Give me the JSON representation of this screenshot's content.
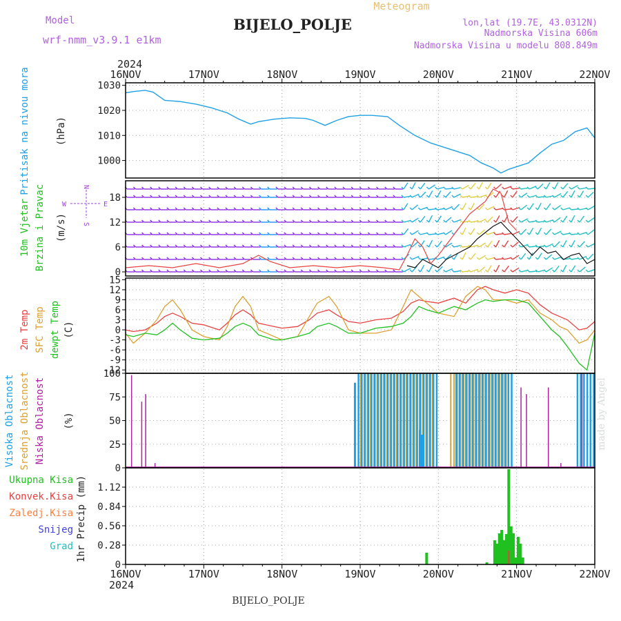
{
  "header": {
    "model_label": "Model",
    "model_name": "wrf-nmm_v3.9.1 e1km",
    "title": "BIJELO_POLJE",
    "meteogram": "Meteogram",
    "lonlat": "lon,lat (19.7E, 43.0312N)",
    "elevation": "Nadmorska Visina 606m",
    "model_elevation": "Nadmorska Visina u modelu 808.849m",
    "bottom_name": "BIJELO_POLJE",
    "watermark": "made by Angel",
    "year_top": "2024",
    "year_bottom": "2024"
  },
  "colors": {
    "pressure": "#1ea0e6",
    "temp2m": "#e84040",
    "sfc": "#dca030",
    "dewpt": "#20c020",
    "purple": "#a040e0",
    "high": "#1ea0e6",
    "mid": "#dca030",
    "low": "#b020a0",
    "precip_total": "#20c020",
    "precip_conv": "#e84040"
  },
  "chart_data": [
    {
      "type": "line",
      "panel": "pressure",
      "ylabel_lines": [
        "Pritisak na nivou mora",
        "(hPa)"
      ],
      "x_ticks": [
        "16NOV",
        "17NOV",
        "18NOV",
        "19NOV",
        "20NOV",
        "21NOV",
        "22NOV"
      ],
      "xlim": [
        0,
        6
      ],
      "ylim": [
        993,
        1031
      ],
      "y_ticks": [
        1000,
        1010,
        1020,
        1030
      ],
      "series": [
        {
          "x": [
            0,
            0.1,
            0.25,
            0.35,
            0.5,
            0.7,
            0.9,
            1.1,
            1.3,
            1.45,
            1.6,
            1.7,
            1.9,
            2.1,
            2.3,
            2.4,
            2.55,
            2.7,
            2.85,
            3.0,
            3.15,
            3.35,
            3.5,
            3.7,
            3.9,
            4.0,
            4.2,
            4.4,
            4.55,
            4.7,
            4.8,
            4.9,
            5.05,
            5.15,
            5.3,
            5.45,
            5.6,
            5.75,
            5.9,
            6.0
          ],
          "y": [
            1027,
            1027.5,
            1028,
            1027.3,
            1024,
            1023.5,
            1022.5,
            1021,
            1019,
            1016.5,
            1014.5,
            1015.5,
            1016.5,
            1017,
            1016.8,
            1016,
            1014,
            1016,
            1017.5,
            1018,
            1018,
            1017.5,
            1014,
            1010,
            1007,
            1006,
            1004,
            1002,
            999,
            997,
            995,
            996.5,
            998,
            999,
            1003,
            1006.5,
            1008,
            1011.5,
            1013,
            1009
          ]
        }
      ]
    },
    {
      "type": "line",
      "panel": "wind",
      "ylabel_lines": [
        "10m Vjetar",
        "Brzina i Pravac",
        "(m/s)"
      ],
      "compass": {
        "n": "N",
        "w": "W",
        "e": "E",
        "s": "S"
      },
      "ylim": [
        -1,
        22
      ],
      "y_ticks": [
        0,
        6,
        12,
        18
      ],
      "series": [
        {
          "name": "speed",
          "x": [
            3.6,
            3.7,
            3.8,
            3.9,
            4.0,
            4.1,
            4.2,
            4.3,
            4.4,
            4.5,
            4.6,
            4.7,
            4.8,
            4.9,
            5.0,
            5.1,
            5.2,
            5.3,
            5.4,
            5.5,
            5.6,
            5.7,
            5.8,
            5.9,
            6.0
          ],
          "y": [
            1.5,
            1,
            3,
            2,
            1,
            3,
            4,
            5,
            6,
            8,
            9.5,
            11,
            12,
            10,
            8,
            6,
            4,
            6,
            4.5,
            5,
            3,
            4,
            4.5,
            2,
            3
          ]
        },
        {
          "name": "gust",
          "x": [
            0,
            0.3,
            0.6,
            0.9,
            1.2,
            1.5,
            1.7,
            1.85,
            2.1,
            2.4,
            2.7,
            3.0,
            3.3,
            3.5,
            3.6,
            3.7,
            3.8,
            3.9,
            4.0,
            4.2,
            4.4,
            4.6,
            4.7,
            4.8,
            4.9,
            5.0
          ],
          "y": [
            1,
            1.5,
            1,
            2,
            1,
            2,
            4,
            2.5,
            1,
            1.5,
            1,
            1.5,
            1,
            0.5,
            4,
            8,
            6,
            2,
            4,
            9,
            14,
            17,
            20,
            19,
            12,
            10
          ]
        }
      ]
    },
    {
      "type": "line",
      "panel": "temperature",
      "ylabel_lines": [
        "2m Temp",
        "SFC Temp",
        "dewpt Temp",
        "(C)"
      ],
      "ylim": [
        -13,
        15.5
      ],
      "y_ticks": [
        15,
        12,
        9,
        6,
        3,
        0,
        -3,
        -6,
        -9,
        -12
      ],
      "x": [
        0,
        0.1,
        0.25,
        0.4,
        0.5,
        0.6,
        0.7,
        0.85,
        1.0,
        1.2,
        1.3,
        1.4,
        1.5,
        1.6,
        1.7,
        1.9,
        2.0,
        2.2,
        2.35,
        2.45,
        2.6,
        2.7,
        2.85,
        3.0,
        3.2,
        3.4,
        3.55,
        3.65,
        3.75,
        3.85,
        4.0,
        4.2,
        4.35,
        4.5,
        4.6,
        4.7,
        4.85,
        5.0,
        5.15,
        5.3,
        5.45,
        5.55,
        5.65,
        5.8,
        5.9,
        6.0
      ],
      "series": [
        {
          "name": "2m Temp",
          "y": [
            0,
            -0.5,
            0,
            2,
            4,
            5,
            4,
            2,
            1.5,
            0,
            2,
            4.5,
            6,
            4.5,
            2,
            1,
            0.5,
            1,
            3,
            5,
            6,
            4.5,
            2.5,
            2,
            3,
            3.5,
            5.5,
            8,
            9,
            8.5,
            8,
            9.5,
            8,
            12,
            13,
            12,
            11,
            12,
            11,
            7.5,
            5,
            4,
            3,
            0,
            0.5,
            2.5
          ]
        },
        {
          "name": "SFC Temp",
          "y": [
            -1,
            -4,
            -1,
            3,
            7,
            9,
            6,
            0,
            -2,
            -3,
            1,
            7,
            10,
            7,
            0,
            -2,
            -3,
            -2,
            4,
            8,
            10,
            7,
            0,
            -1,
            -1,
            0,
            7,
            12,
            10,
            8,
            5,
            4,
            10,
            13,
            12,
            9,
            9,
            8,
            9,
            5,
            3,
            1,
            0,
            -4,
            -3,
            0
          ]
        },
        {
          "name": "dewpt Temp",
          "y": [
            -1.5,
            -2,
            -1,
            -1.5,
            0,
            2,
            0,
            -2.5,
            -3,
            -2.5,
            -1,
            1,
            2,
            1,
            -1.5,
            -3,
            -3,
            -2,
            -1,
            1,
            2,
            1,
            -1,
            -1,
            0.5,
            1,
            2,
            4,
            7,
            6,
            5,
            7,
            6,
            8,
            9,
            8.5,
            9,
            9,
            8,
            4,
            0,
            -2,
            -5,
            -10,
            -12,
            -1
          ]
        }
      ]
    },
    {
      "type": "bar",
      "panel": "clouds",
      "ylabel_lines": [
        "Visoka Oblacnost",
        "Srednja Oblacnost",
        "Niska Oblacnost",
        "(%)"
      ],
      "ylim": [
        0,
        100
      ],
      "y_ticks": [
        0,
        25,
        50,
        75,
        100
      ],
      "high_ranges": [
        [
          2.95,
          3.95
        ],
        [
          4.2,
          4.95
        ],
        [
          5.75,
          6.0
        ]
      ],
      "mid_ranges": [
        [
          3.0,
          3.95
        ],
        [
          4.15,
          4.9
        ]
      ],
      "high_partial": [
        [
          2.92,
          90
        ],
        [
          3.75,
          40
        ],
        [
          3.78,
          35
        ]
      ],
      "low_bars": [
        [
          0.07,
          98
        ],
        [
          0.2,
          70
        ],
        [
          0.25,
          78
        ],
        [
          0.37,
          5
        ],
        [
          5.05,
          85
        ],
        [
          5.12,
          78
        ],
        [
          5.4,
          85
        ],
        [
          5.56,
          5
        ],
        [
          5.83,
          100
        ]
      ]
    },
    {
      "type": "bar",
      "panel": "precip",
      "ylabel": "1hr Precip (mm)",
      "legend": [
        "Ukupna Kisa",
        "Konvek.Kisa",
        "Zaledj.Kisa",
        "Snijeg",
        "Grad"
      ],
      "legend_colors": [
        "#20c020",
        "#e84040",
        "#ff8040",
        "#4040e0",
        "#20c0c0"
      ],
      "ylim": [
        0,
        1.4
      ],
      "y_ticks": [
        0,
        0.28,
        0.56,
        0.84,
        1.12
      ],
      "x_ticks": [
        "16NOV",
        "17NOV",
        "18NOV",
        "19NOV",
        "20NOV",
        "21NOV",
        "22NOV"
      ],
      "total": [
        [
          3.85,
          0.17
        ],
        [
          4.62,
          0.03
        ],
        [
          4.72,
          0.35
        ],
        [
          4.75,
          0.3
        ],
        [
          4.78,
          0.45
        ],
        [
          4.81,
          0.5
        ],
        [
          4.84,
          0.35
        ],
        [
          4.87,
          0.44
        ],
        [
          4.9,
          1.38
        ],
        [
          4.93,
          0.55
        ],
        [
          4.96,
          0.45
        ],
        [
          4.99,
          0.1
        ],
        [
          5.02,
          0.4
        ],
        [
          5.05,
          0.3
        ],
        [
          5.08,
          0.1
        ]
      ],
      "convective": [
        [
          4.9,
          0.2
        ]
      ]
    }
  ]
}
